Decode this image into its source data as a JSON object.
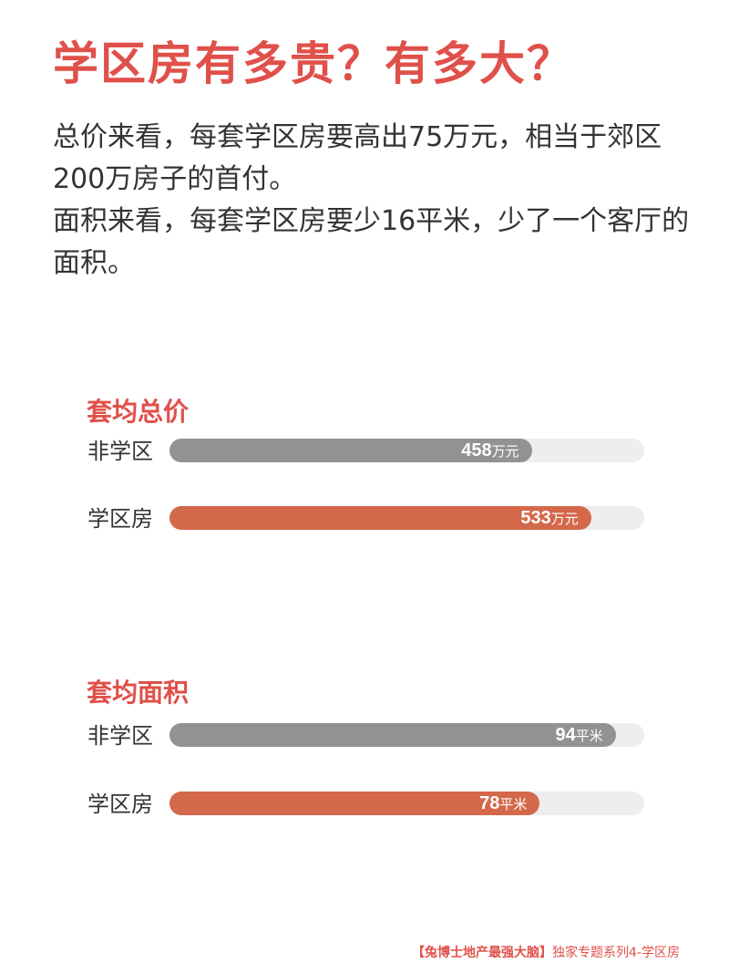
{
  "title": "学区房有多贵？有多大？",
  "intro": [
    "总价来看，每套学区房要高出75万元，相当于郊区200万房子的首付。",
    "面积来看，每套学区房要少16平米，少了一个客厅的面积。"
  ],
  "colors": {
    "accent": "#e0504a",
    "non_school": "#929292",
    "school": "#d4684a",
    "track": "#eeeeee"
  },
  "chart_data": [
    {
      "type": "bar",
      "orientation": "horizontal",
      "title": "套均总价",
      "categories": [
        "非学区",
        "学区房"
      ],
      "values": [
        458,
        533
      ],
      "unit": "万元",
      "xlim": [
        0,
        600
      ]
    },
    {
      "type": "bar",
      "orientation": "horizontal",
      "title": "套均面积",
      "categories": [
        "非学区",
        "学区房"
      ],
      "values": [
        94,
        78
      ],
      "unit": "平米",
      "xlim": [
        0,
        100
      ]
    }
  ],
  "footer": {
    "brand": "【兔博士地产最强大脑】",
    "series": "独家专题系列4-学区房"
  }
}
